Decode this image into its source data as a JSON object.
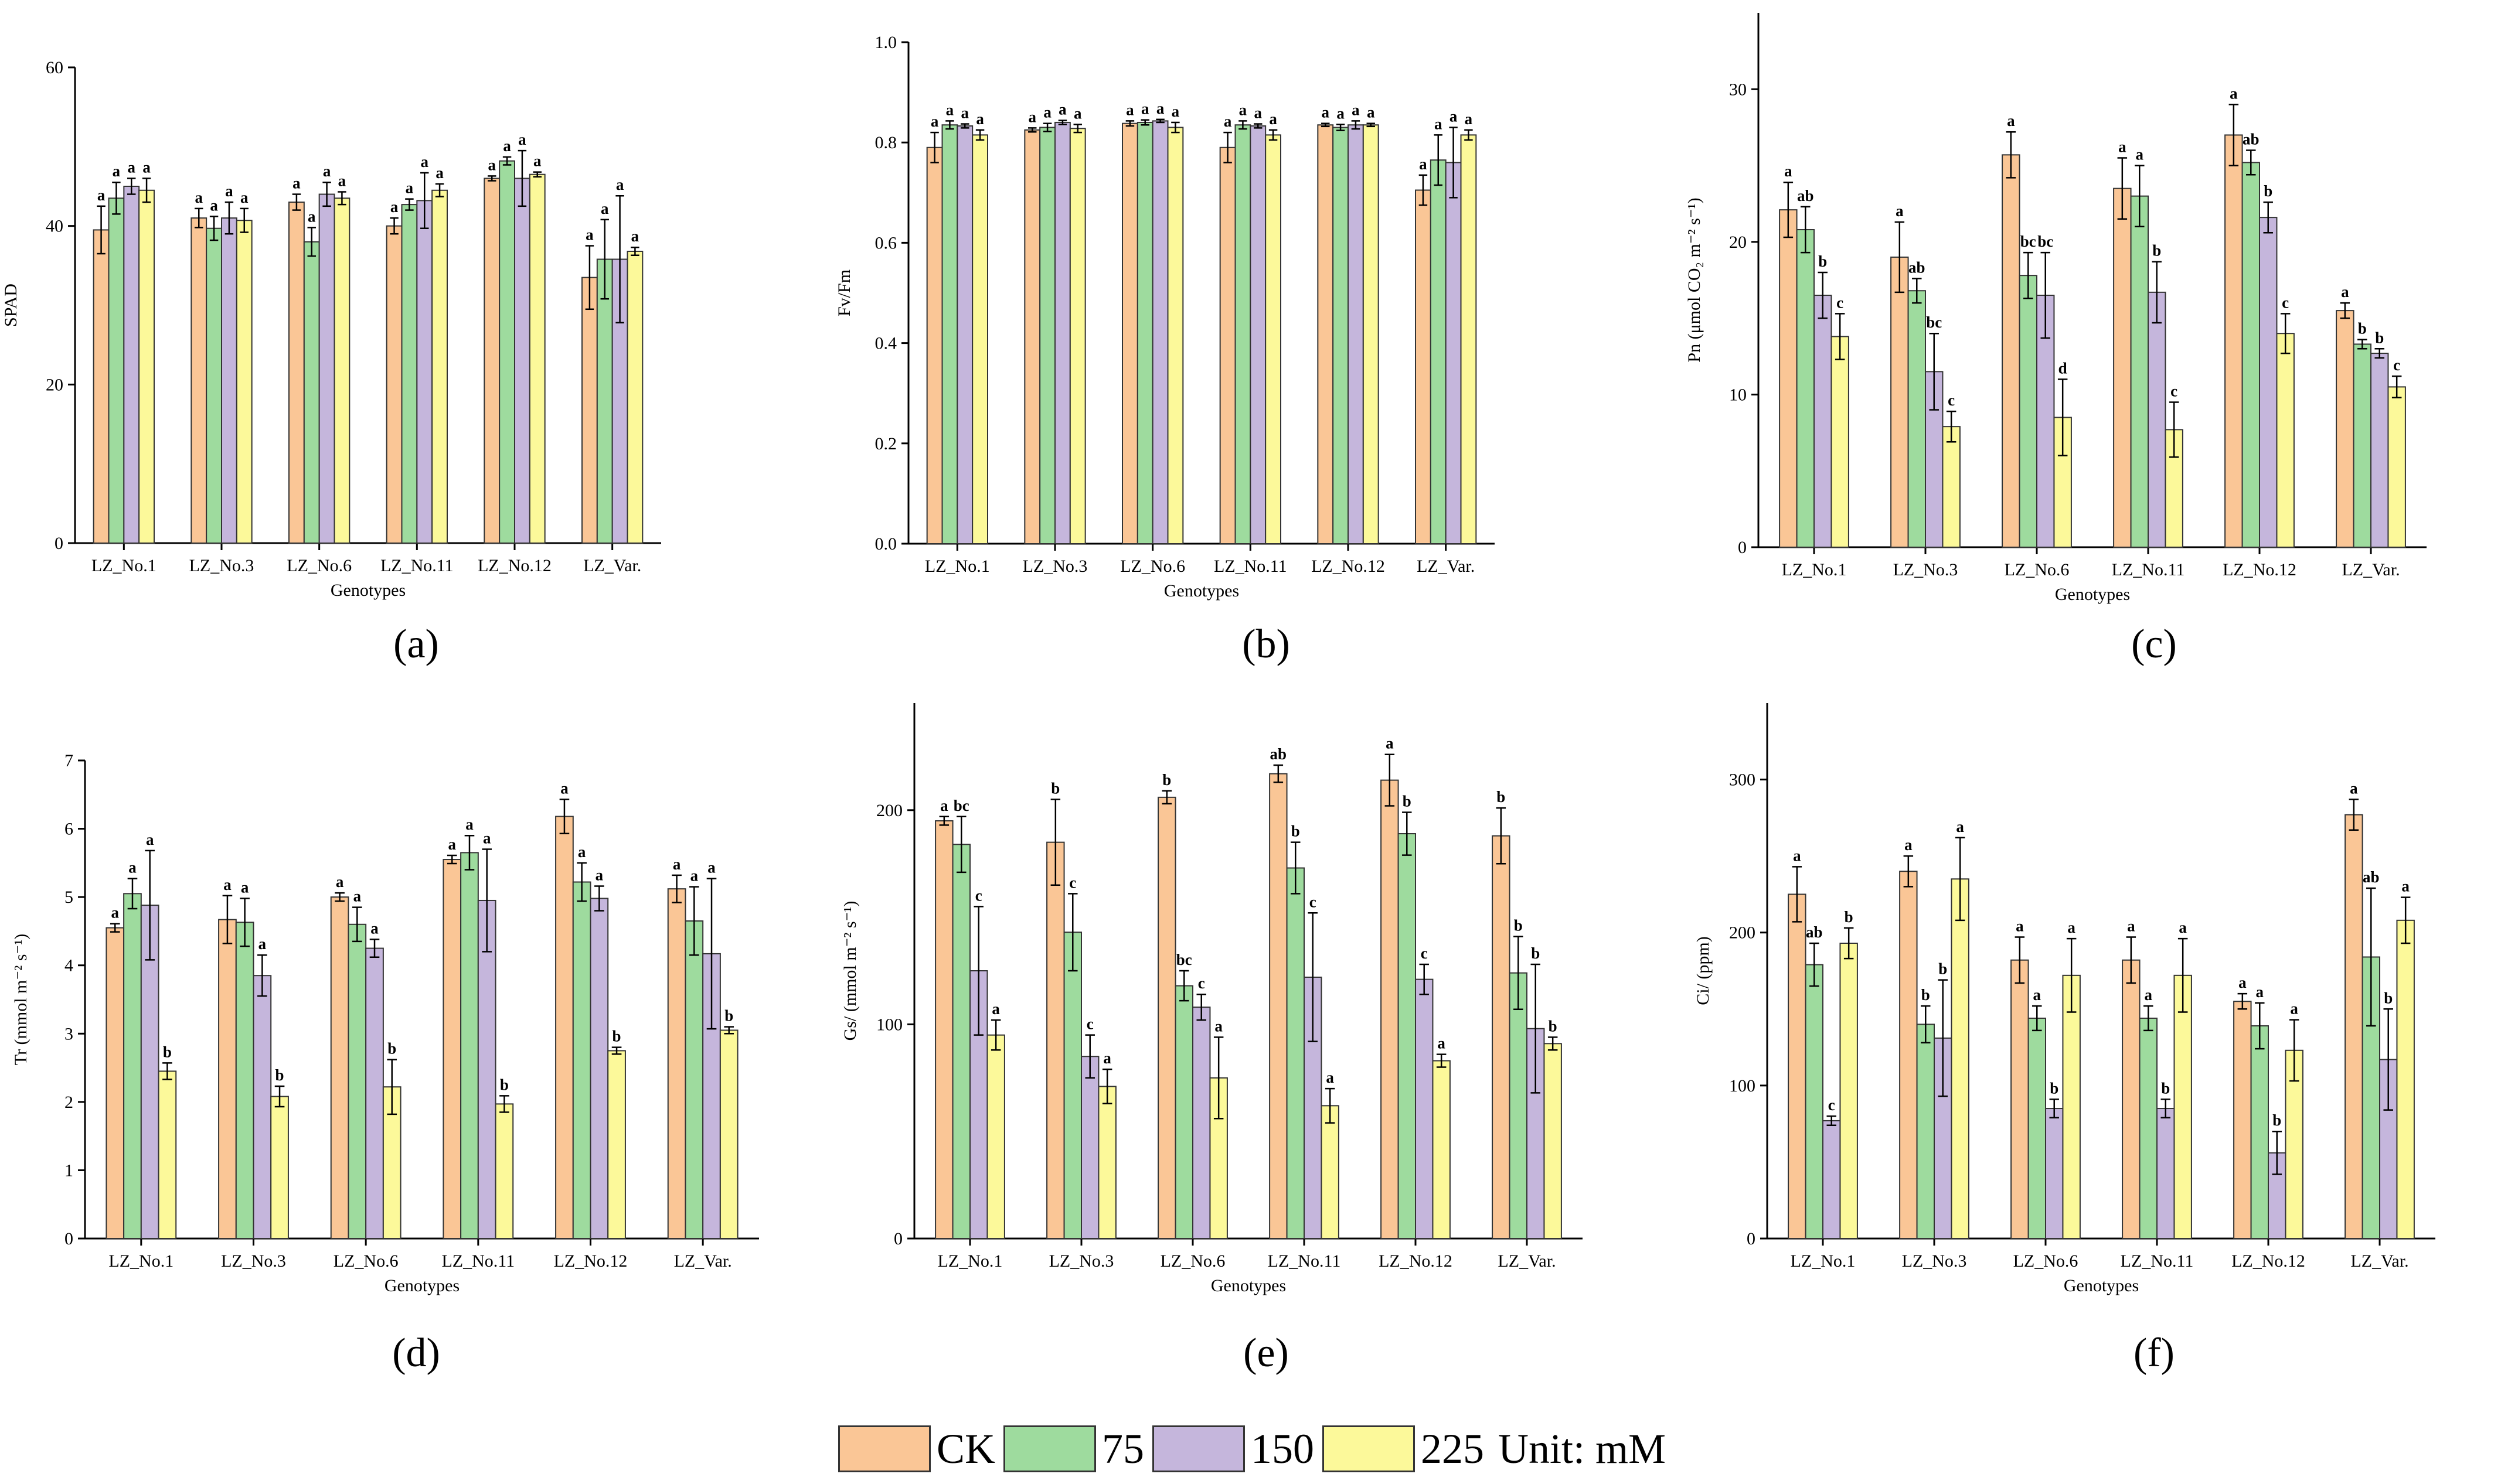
{
  "legend": {
    "items": [
      "CK",
      "75",
      "150",
      "225"
    ],
    "unit_label": "Unit: mM",
    "colors": [
      "#FAC696",
      "#9EDB9E",
      "#C5B6DC",
      "#FCF99A"
    ]
  },
  "chart_data": [
    {
      "panel": "(a)",
      "type": "bar",
      "title": "",
      "ylabel": "SPAD",
      "xlabel": "Genotypes",
      "categories": [
        "LZ_No.1",
        "LZ_No.3",
        "LZ_No.6",
        "LZ_No.11",
        "LZ_No.12",
        "LZ_Var."
      ],
      "ylim": [
        0,
        60
      ],
      "yticks": [
        0,
        20,
        40,
        60
      ],
      "series": [
        {
          "name": "CK",
          "values": [
            39.5,
            41.0,
            43.0,
            40.0,
            46.0,
            33.5
          ],
          "errors": [
            3.0,
            1.2,
            1.0,
            1.0,
            0.3,
            4.0
          ],
          "letters": [
            "a",
            "a",
            "a",
            "a",
            "a",
            "a"
          ]
        },
        {
          "name": "75",
          "values": [
            43.5,
            39.7,
            38.0,
            42.7,
            48.2,
            35.8
          ],
          "errors": [
            2.0,
            1.5,
            1.8,
            0.7,
            0.5,
            5.0
          ],
          "letters": [
            "a",
            "a",
            "a",
            "a",
            "a",
            "a"
          ]
        },
        {
          "name": "150",
          "values": [
            45.0,
            41.0,
            44.0,
            43.2,
            46.0,
            35.8
          ],
          "errors": [
            1.0,
            2.0,
            1.5,
            3.5,
            3.5,
            8.0
          ],
          "letters": [
            "a",
            "a",
            "a",
            "a",
            "a",
            "a"
          ]
        },
        {
          "name": "225",
          "values": [
            44.5,
            40.7,
            43.5,
            44.5,
            46.5,
            36.8
          ],
          "errors": [
            1.5,
            1.5,
            0.8,
            0.8,
            0.3,
            0.5
          ],
          "letters": [
            "a",
            "a",
            "a",
            "a",
            "a",
            "a"
          ]
        }
      ]
    },
    {
      "panel": "(b)",
      "type": "bar",
      "title": "",
      "ylabel": "Fv/Fm",
      "xlabel": "Genotypes",
      "categories": [
        "LZ_No.1",
        "LZ_No.3",
        "LZ_No.6",
        "LZ_No.11",
        "LZ_No.12",
        "LZ_Var."
      ],
      "ylim": [
        0,
        1.0
      ],
      "yticks": [
        0.0,
        0.2,
        0.4,
        0.6,
        0.8,
        1.0
      ],
      "ytick_labels": [
        "0.0",
        "0.2",
        "0.4",
        "0.6",
        "0.8",
        "1.0"
      ],
      "series": [
        {
          "name": "CK",
          "values": [
            0.79,
            0.825,
            0.838,
            0.79,
            0.835,
            0.705
          ],
          "errors": [
            0.03,
            0.004,
            0.005,
            0.03,
            0.003,
            0.03
          ],
          "letters": [
            "a",
            "a",
            "a",
            "a",
            "a",
            "a"
          ]
        },
        {
          "name": "75",
          "values": [
            0.835,
            0.83,
            0.84,
            0.835,
            0.83,
            0.765
          ],
          "errors": [
            0.008,
            0.008,
            0.005,
            0.008,
            0.006,
            0.05
          ],
          "letters": [
            "a",
            "a",
            "a",
            "a",
            "a",
            "a"
          ]
        },
        {
          "name": "150",
          "values": [
            0.833,
            0.84,
            0.843,
            0.833,
            0.835,
            0.76
          ],
          "errors": [
            0.004,
            0.004,
            0.003,
            0.004,
            0.008,
            0.07
          ],
          "letters": [
            "a",
            "a",
            "a",
            "a",
            "a",
            "a"
          ]
        },
        {
          "name": "225",
          "values": [
            0.815,
            0.828,
            0.83,
            0.815,
            0.835,
            0.815
          ],
          "errors": [
            0.01,
            0.008,
            0.01,
            0.01,
            0.003,
            0.01
          ],
          "letters": [
            "a",
            "a",
            "a",
            "a",
            "a",
            "a"
          ]
        }
      ]
    },
    {
      "panel": "(c)",
      "type": "bar",
      "title": "",
      "ylabel": "Pn (μmol CO₂ m⁻² s⁻¹)",
      "xlabel": "Genotypes",
      "categories": [
        "LZ_No.1",
        "LZ_No.3",
        "LZ_No.6",
        "LZ_No.11",
        "LZ_No.12",
        "LZ_Var."
      ],
      "ylim": [
        0,
        35
      ],
      "yticks": [
        0,
        10,
        20,
        30
      ],
      "series": [
        {
          "name": "CK",
          "values": [
            22.1,
            19.0,
            25.7,
            23.5,
            27.0,
            15.5
          ],
          "errors": [
            1.8,
            2.3,
            1.5,
            2.0,
            2.0,
            0.5
          ],
          "letters": [
            "a",
            "a",
            "a",
            "a",
            "a",
            "a"
          ]
        },
        {
          "name": "75",
          "values": [
            20.8,
            16.8,
            17.8,
            23.0,
            25.2,
            13.3
          ],
          "errors": [
            1.5,
            0.8,
            1.5,
            2.0,
            0.8,
            0.3
          ],
          "letters": [
            "ab",
            "ab",
            "bc",
            "a",
            "ab",
            "b"
          ]
        },
        {
          "name": "150",
          "values": [
            16.5,
            11.5,
            16.5,
            16.7,
            21.6,
            12.7
          ],
          "errors": [
            1.5,
            2.5,
            2.8,
            2.0,
            1.0,
            0.3
          ],
          "letters": [
            "b",
            "bc",
            "bc",
            "b",
            "b",
            "b"
          ]
        },
        {
          "name": "225",
          "values": [
            13.8,
            7.9,
            8.5,
            7.7,
            14.0,
            10.5
          ],
          "errors": [
            1.5,
            1.0,
            2.5,
            1.8,
            1.3,
            0.7
          ],
          "letters": [
            "c",
            "c",
            "d",
            "c",
            "c",
            "c"
          ]
        }
      ]
    },
    {
      "panel": "(d)",
      "type": "bar",
      "title": "",
      "ylabel": "Tr (mmol m⁻² s⁻¹)",
      "xlabel": "Genotypes",
      "categories": [
        "LZ_No.1",
        "LZ_No.3",
        "LZ_No.6",
        "LZ_No.11",
        "LZ_No.12",
        "LZ_Var."
      ],
      "ylim": [
        0,
        7
      ],
      "yticks": [
        0,
        1,
        2,
        3,
        4,
        5,
        6,
        7
      ],
      "series": [
        {
          "name": "CK",
          "values": [
            4.55,
            4.67,
            5.0,
            5.55,
            6.18,
            5.12
          ],
          "errors": [
            0.06,
            0.35,
            0.06,
            0.06,
            0.25,
            0.2
          ],
          "letters": [
            "a",
            "a",
            "a",
            "a",
            "a",
            "a"
          ]
        },
        {
          "name": "75",
          "values": [
            5.05,
            4.63,
            4.6,
            5.65,
            5.22,
            4.65
          ],
          "errors": [
            0.22,
            0.35,
            0.25,
            0.25,
            0.28,
            0.5
          ],
          "letters": [
            "a",
            "a",
            "a",
            "a",
            "a",
            "a"
          ]
        },
        {
          "name": "150",
          "values": [
            4.88,
            3.85,
            4.25,
            4.95,
            4.98,
            4.17
          ],
          "errors": [
            0.8,
            0.3,
            0.13,
            0.75,
            0.18,
            1.1
          ],
          "letters": [
            "a",
            "a",
            "a",
            "a",
            "a",
            "a"
          ]
        },
        {
          "name": "225",
          "values": [
            2.45,
            2.08,
            2.22,
            1.97,
            2.75,
            3.05
          ],
          "errors": [
            0.12,
            0.15,
            0.4,
            0.12,
            0.05,
            0.05
          ],
          "letters": [
            "b",
            "b",
            "b",
            "b",
            "b",
            "b"
          ]
        }
      ]
    },
    {
      "panel": "(e)",
      "type": "bar",
      "title": "",
      "ylabel": "Gs/ (mmol m⁻² s⁻¹)",
      "xlabel": "Genotypes",
      "categories": [
        "LZ_No.1",
        "LZ_No.3",
        "LZ_No.6",
        "LZ_No.11",
        "LZ_No.12",
        "LZ_Var."
      ],
      "ylim": [
        0,
        250
      ],
      "yticks": [
        0,
        100,
        200
      ],
      "series": [
        {
          "name": "CK",
          "values": [
            195,
            185,
            206,
            217,
            214,
            188
          ],
          "errors": [
            2,
            20,
            3,
            4,
            12,
            13
          ],
          "letters": [
            "a",
            "b",
            "b",
            "ab",
            "a",
            "b"
          ]
        },
        {
          "name": "75",
          "values": [
            184,
            143,
            118,
            173,
            189,
            124
          ],
          "errors": [
            13,
            18,
            7,
            12,
            10,
            17
          ],
          "letters": [
            "bc",
            "c",
            "bc",
            "b",
            "b",
            "b"
          ]
        },
        {
          "name": "150",
          "values": [
            125,
            85,
            108,
            122,
            121,
            98
          ],
          "errors": [
            30,
            10,
            6,
            30,
            7,
            30
          ],
          "letters": [
            "c",
            "c",
            "c",
            "c",
            "c",
            "b"
          ]
        },
        {
          "name": "225",
          "values": [
            95,
            71,
            75,
            62,
            83,
            91
          ],
          "errors": [
            7,
            8,
            19,
            8,
            3,
            3
          ],
          "letters": [
            "a",
            "a",
            "a",
            "a",
            "a",
            "b"
          ]
        }
      ]
    },
    {
      "panel": "(f)",
      "type": "bar",
      "title": "",
      "ylabel": "Ci/ (ppm)",
      "xlabel": "Genotypes",
      "categories": [
        "LZ_No.1",
        "LZ_No.3",
        "LZ_No.6",
        "LZ_No.11",
        "LZ_No.12",
        "LZ_Var."
      ],
      "ylim": [
        0,
        350
      ],
      "yticks": [
        0,
        100,
        200,
        300
      ],
      "series": [
        {
          "name": "CK",
          "values": [
            225,
            240,
            182,
            182,
            155,
            277
          ],
          "errors": [
            18,
            10,
            15,
            15,
            5,
            10
          ],
          "letters": [
            "a",
            "a",
            "a",
            "a",
            "a",
            "a"
          ]
        },
        {
          "name": "75",
          "values": [
            179,
            140,
            144,
            144,
            139,
            184
          ],
          "errors": [
            14,
            12,
            8,
            8,
            15,
            45
          ],
          "letters": [
            "ab",
            "b",
            "a",
            "a",
            "a",
            "ab"
          ]
        },
        {
          "name": "150",
          "values": [
            77,
            131,
            85,
            85,
            56,
            117
          ],
          "errors": [
            3,
            38,
            6,
            6,
            14,
            33
          ],
          "letters": [
            "c",
            "b",
            "b",
            "b",
            "b",
            "b"
          ]
        },
        {
          "name": "225",
          "values": [
            193,
            235,
            172,
            172,
            123,
            208
          ],
          "errors": [
            10,
            27,
            24,
            24,
            20,
            15
          ],
          "letters": [
            "b",
            "a",
            "a",
            "a",
            "a",
            "a"
          ]
        }
      ]
    }
  ]
}
